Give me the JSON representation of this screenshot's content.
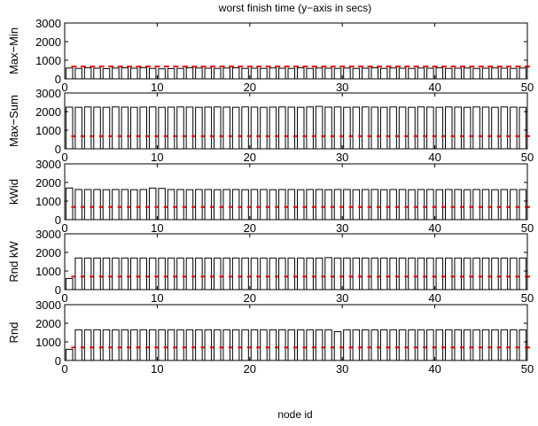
{
  "figure_title": "worst finish time (y−axis in secs)",
  "xlabel": "node id",
  "colors": {
    "bar_edge": "#000000",
    "bar_fill": "#ffffff",
    "marker": "#ff0000",
    "axis": "#000000",
    "background": "#ffffff"
  },
  "chart_data": [
    {
      "type": "bar",
      "ylabel": "Max−Min",
      "xlim": [
        0,
        50
      ],
      "ylim": [
        0,
        3000
      ],
      "xticks": [
        0,
        10,
        20,
        30,
        40,
        50
      ],
      "yticks": [
        0,
        1000,
        2000,
        3000
      ],
      "x": [
        1,
        2,
        3,
        4,
        5,
        6,
        7,
        8,
        9,
        10,
        11,
        12,
        13,
        14,
        15,
        16,
        17,
        18,
        19,
        20,
        21,
        22,
        23,
        24,
        25,
        26,
        27,
        28,
        29,
        30,
        31,
        32,
        33,
        34,
        35,
        36,
        37,
        38,
        39,
        40,
        41,
        42,
        43,
        44,
        45,
        46,
        47,
        48,
        49,
        50
      ],
      "values": [
        580,
        560,
        590,
        570,
        550,
        580,
        590,
        570,
        600,
        560,
        540,
        550,
        560,
        590,
        580,
        570,
        560,
        580,
        590,
        560,
        570,
        560,
        580,
        570,
        560,
        590,
        560,
        580,
        570,
        560,
        580,
        560,
        570,
        590,
        560,
        580,
        570,
        560,
        580,
        570,
        590,
        560,
        570,
        580,
        560,
        570,
        580,
        570,
        560,
        580
      ],
      "marker_value": 660,
      "grid": false
    },
    {
      "type": "bar",
      "ylabel": "Max−Sum",
      "xlim": [
        0,
        50
      ],
      "ylim": [
        0,
        3000
      ],
      "xticks": [
        0,
        10,
        20,
        30,
        40,
        50
      ],
      "yticks": [
        0,
        1000,
        2000,
        3000
      ],
      "x": [
        1,
        2,
        3,
        4,
        5,
        6,
        7,
        8,
        9,
        10,
        11,
        12,
        13,
        14,
        15,
        16,
        17,
        18,
        19,
        20,
        21,
        22,
        23,
        24,
        25,
        26,
        27,
        28,
        29,
        30,
        31,
        32,
        33,
        34,
        35,
        36,
        37,
        38,
        39,
        40,
        41,
        42,
        43,
        44,
        45,
        46,
        47,
        48,
        49,
        50
      ],
      "values": [
        2240,
        2230,
        2250,
        2240,
        2230,
        2250,
        2240,
        2230,
        2240,
        2250,
        2230,
        2240,
        2250,
        2240,
        2230,
        2240,
        2250,
        2240,
        2230,
        2250,
        2240,
        2230,
        2240,
        2250,
        2240,
        2230,
        2250,
        2280,
        2240,
        2250,
        2230,
        2240,
        2250,
        2240,
        2230,
        2250,
        2240,
        2230,
        2250,
        2240,
        2230,
        2250,
        2240,
        2230,
        2250,
        2240,
        2230,
        2250,
        2240,
        2230
      ],
      "marker_value": 680,
      "grid": false
    },
    {
      "type": "bar",
      "ylabel": "kWid",
      "xlim": [
        0,
        50
      ],
      "ylim": [
        0,
        3000
      ],
      "xticks": [
        0,
        10,
        20,
        30,
        40,
        50
      ],
      "yticks": [
        0,
        1000,
        2000,
        3000
      ],
      "x": [
        1,
        2,
        3,
        4,
        5,
        6,
        7,
        8,
        9,
        10,
        11,
        12,
        13,
        14,
        15,
        16,
        17,
        18,
        19,
        20,
        21,
        22,
        23,
        24,
        25,
        26,
        27,
        28,
        29,
        30,
        31,
        32,
        33,
        34,
        35,
        36,
        37,
        38,
        39,
        40,
        41,
        42,
        43,
        44,
        45,
        46,
        47,
        48,
        49,
        50
      ],
      "values": [
        1700,
        1620,
        1620,
        1620,
        1610,
        1620,
        1620,
        1610,
        1620,
        1700,
        1680,
        1620,
        1620,
        1610,
        1620,
        1620,
        1610,
        1620,
        1620,
        1610,
        1620,
        1620,
        1610,
        1620,
        1620,
        1610,
        1620,
        1620,
        1610,
        1620,
        1620,
        1610,
        1620,
        1620,
        1610,
        1620,
        1620,
        1610,
        1620,
        1620,
        1610,
        1620,
        1620,
        1610,
        1620,
        1620,
        1610,
        1620,
        1620,
        1620
      ],
      "marker_value": 680,
      "grid": false
    },
    {
      "type": "bar",
      "ylabel": "Rnd kW",
      "xlim": [
        0,
        50
      ],
      "ylim": [
        0,
        3000
      ],
      "xticks": [
        0,
        10,
        20,
        30,
        40,
        50
      ],
      "yticks": [
        0,
        1000,
        2000,
        3000
      ],
      "x": [
        1,
        2,
        3,
        4,
        5,
        6,
        7,
        8,
        9,
        10,
        11,
        12,
        13,
        14,
        15,
        16,
        17,
        18,
        19,
        20,
        21,
        22,
        23,
        24,
        25,
        26,
        27,
        28,
        29,
        30,
        31,
        32,
        33,
        34,
        35,
        36,
        37,
        38,
        39,
        40,
        41,
        42,
        43,
        44,
        45,
        46,
        47,
        48,
        49,
        50
      ],
      "values": [
        600,
        1700,
        1700,
        1700,
        1700,
        1700,
        1700,
        1700,
        1700,
        1700,
        1700,
        1700,
        1700,
        1700,
        1700,
        1700,
        1700,
        1700,
        1700,
        1700,
        1700,
        1700,
        1700,
        1700,
        1700,
        1700,
        1700,
        1700,
        1720,
        1700,
        1700,
        1700,
        1700,
        1700,
        1700,
        1700,
        1700,
        1700,
        1700,
        1700,
        1700,
        1700,
        1700,
        1700,
        1700,
        1700,
        1700,
        1700,
        1700,
        1700
      ],
      "marker_value": 700,
      "grid": false
    },
    {
      "type": "bar",
      "ylabel": "Rnd",
      "xlim": [
        0,
        50
      ],
      "ylim": [
        0,
        3000
      ],
      "xticks": [
        0,
        10,
        20,
        30,
        40,
        50
      ],
      "yticks": [
        0,
        1000,
        2000,
        3000
      ],
      "x": [
        1,
        2,
        3,
        4,
        5,
        6,
        7,
        8,
        9,
        10,
        11,
        12,
        13,
        14,
        15,
        16,
        17,
        18,
        19,
        20,
        21,
        22,
        23,
        24,
        25,
        26,
        27,
        28,
        29,
        30,
        31,
        32,
        33,
        34,
        35,
        36,
        37,
        38,
        39,
        40,
        41,
        42,
        43,
        44,
        45,
        46,
        47,
        48,
        49,
        50
      ],
      "values": [
        600,
        1650,
        1650,
        1650,
        1650,
        1650,
        1650,
        1650,
        1650,
        1650,
        1650,
        1650,
        1650,
        1650,
        1650,
        1650,
        1650,
        1650,
        1650,
        1650,
        1650,
        1650,
        1650,
        1650,
        1650,
        1650,
        1650,
        1650,
        1650,
        1550,
        1650,
        1650,
        1650,
        1650,
        1650,
        1650,
        1650,
        1650,
        1650,
        1650,
        1650,
        1650,
        1650,
        1650,
        1650,
        1650,
        1650,
        1650,
        1650,
        1650
      ],
      "marker_value": 700,
      "grid": false
    }
  ]
}
